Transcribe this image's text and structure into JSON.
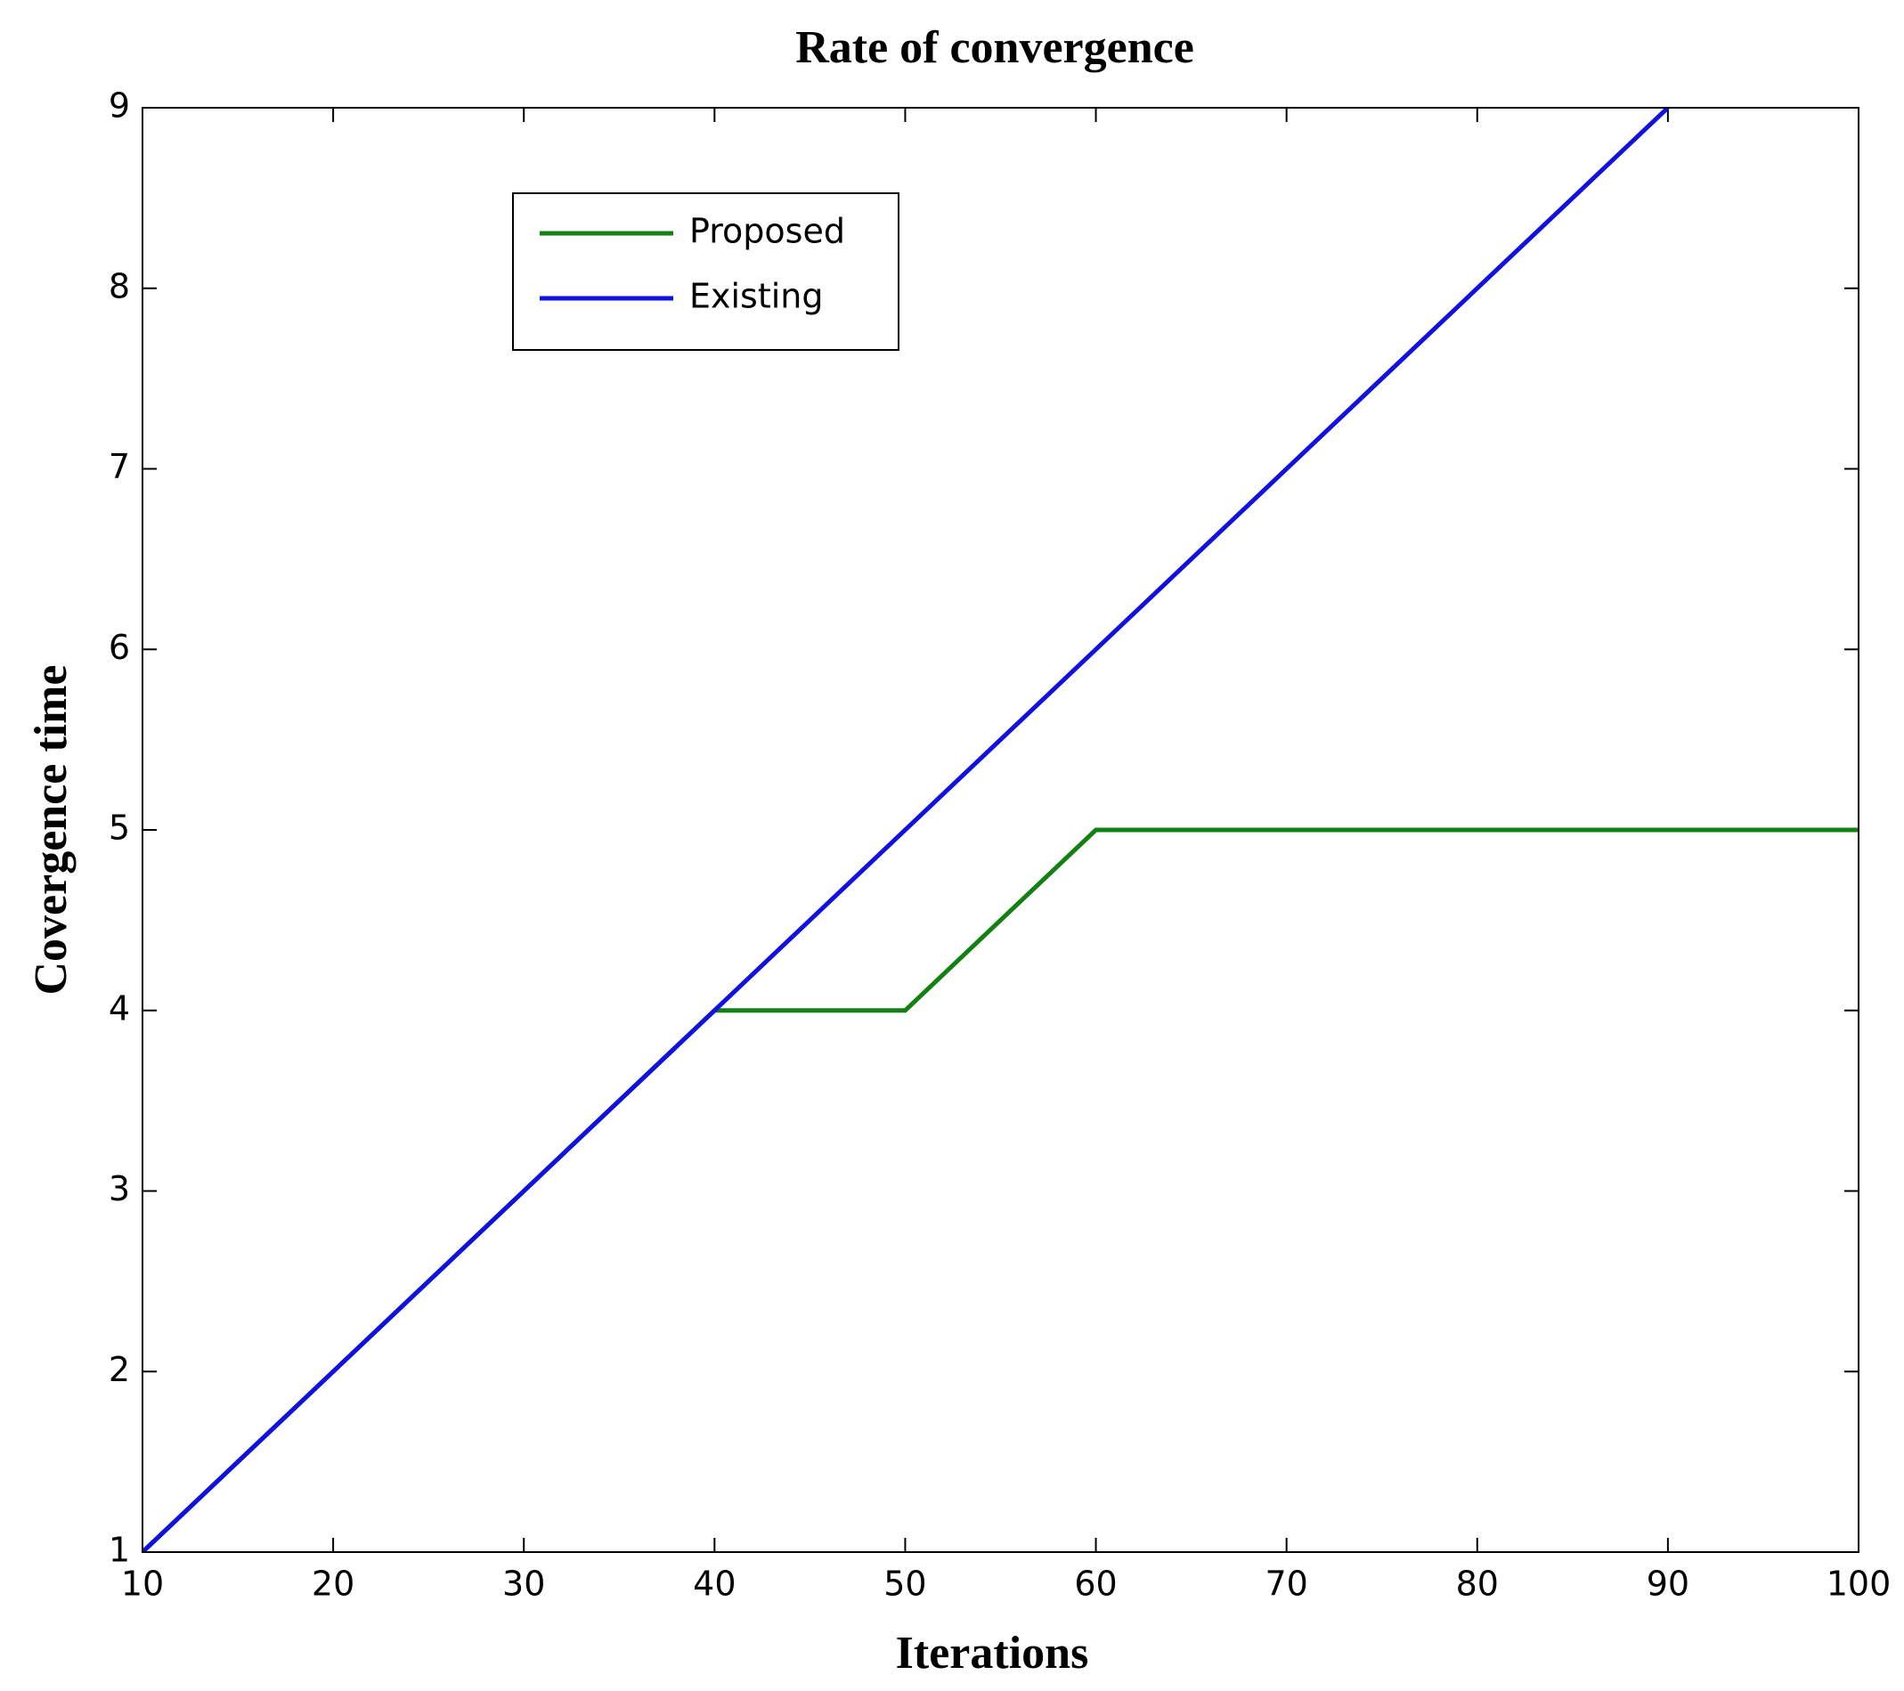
{
  "chart_data": {
    "type": "line",
    "title": "Rate of convergence",
    "xlabel": "Iterations",
    "ylabel": "Covergence time",
    "xlim": [
      10,
      100
    ],
    "xticks": [
      10,
      20,
      30,
      40,
      50,
      60,
      70,
      80,
      90,
      100
    ],
    "ylim": [
      1,
      9
    ],
    "yticks": [
      1,
      2,
      3,
      4,
      5,
      6,
      7,
      8,
      9
    ],
    "legend": "upper left",
    "series": [
      {
        "name": "Proposed",
        "color": "#138013",
        "x": [
          10,
          40,
          50,
          60,
          100
        ],
        "values": [
          1,
          4,
          4,
          5,
          5
        ]
      },
      {
        "name": "Existing",
        "color": "#1010e0",
        "x": [
          10,
          90
        ],
        "values": [
          1,
          9
        ]
      }
    ]
  }
}
